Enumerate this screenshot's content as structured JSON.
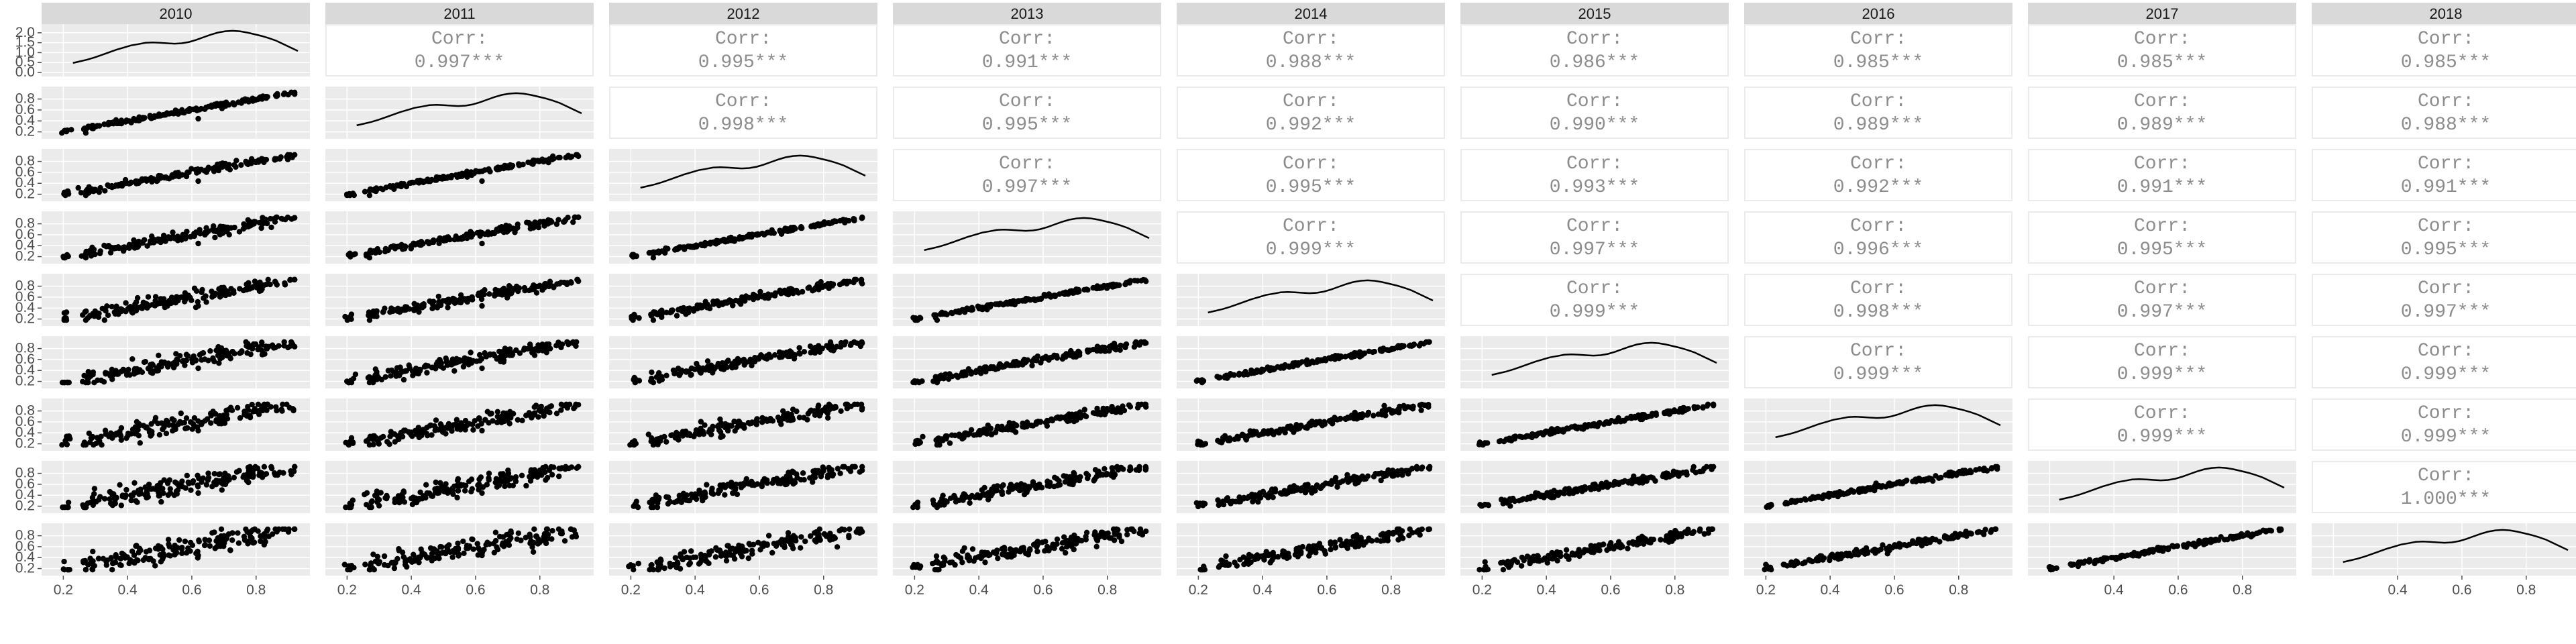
{
  "chart_data": {
    "type": "scatterplot-matrix",
    "variables": [
      "2010",
      "2011",
      "2012",
      "2013",
      "2014",
      "2015",
      "2016",
      "2017",
      "2018"
    ],
    "corr_label": "Corr:",
    "correlations": [
      [
        "2011",
        "2010",
        "0.997***"
      ],
      [
        "2012",
        "2010",
        "0.995***"
      ],
      [
        "2013",
        "2010",
        "0.991***"
      ],
      [
        "2014",
        "2010",
        "0.988***"
      ],
      [
        "2015",
        "2010",
        "0.986***"
      ],
      [
        "2016",
        "2010",
        "0.985***"
      ],
      [
        "2017",
        "2010",
        "0.985***"
      ],
      [
        "2018",
        "2010",
        "0.985***"
      ],
      [
        "2012",
        "2011",
        "0.998***"
      ],
      [
        "2013",
        "2011",
        "0.995***"
      ],
      [
        "2014",
        "2011",
        "0.992***"
      ],
      [
        "2015",
        "2011",
        "0.990***"
      ],
      [
        "2016",
        "2011",
        "0.989***"
      ],
      [
        "2017",
        "2011",
        "0.989***"
      ],
      [
        "2018",
        "2011",
        "0.988***"
      ],
      [
        "2013",
        "2012",
        "0.997***"
      ],
      [
        "2014",
        "2012",
        "0.995***"
      ],
      [
        "2015",
        "2012",
        "0.993***"
      ],
      [
        "2016",
        "2012",
        "0.992***"
      ],
      [
        "2017",
        "2012",
        "0.991***"
      ],
      [
        "2018",
        "2012",
        "0.991***"
      ],
      [
        "2014",
        "2013",
        "0.999***"
      ],
      [
        "2015",
        "2013",
        "0.997***"
      ],
      [
        "2016",
        "2013",
        "0.996***"
      ],
      [
        "2017",
        "2013",
        "0.995***"
      ],
      [
        "2018",
        "2013",
        "0.995***"
      ],
      [
        "2015",
        "2014",
        "0.999***"
      ],
      [
        "2016",
        "2014",
        "0.998***"
      ],
      [
        "2017",
        "2014",
        "0.997***"
      ],
      [
        "2018",
        "2014",
        "0.997***"
      ],
      [
        "2016",
        "2015",
        "0.999***"
      ],
      [
        "2017",
        "2015",
        "0.999***"
      ],
      [
        "2018",
        "2015",
        "0.999***"
      ],
      [
        "2017",
        "2016",
        "0.999***"
      ],
      [
        "2018",
        "2016",
        "0.999***"
      ],
      [
        "2018",
        "2017",
        "1.000***"
      ]
    ],
    "value_range": [
      0.17,
      0.93
    ],
    "x_ticks": [
      0.2,
      0.4,
      0.6,
      0.8
    ],
    "diag_y_ticks": [
      0.0,
      0.5,
      1.0,
      1.5,
      2.0
    ],
    "y_ticks": [
      0.2,
      0.4,
      0.6,
      0.8
    ],
    "density_profile": [
      0.22,
      0.26,
      0.3,
      0.35,
      0.41,
      0.47,
      0.53,
      0.58,
      0.63,
      0.66,
      0.69,
      0.7,
      0.69,
      0.68,
      0.67,
      0.68,
      0.71,
      0.76,
      0.82,
      0.88,
      0.93,
      0.96,
      0.97,
      0.96,
      0.93,
      0.89,
      0.85,
      0.8,
      0.74,
      0.66,
      0.58,
      0.5
    ],
    "panel_background": "#ebebeb",
    "strip_background": "#d9d9d9",
    "point_color": "#000000"
  }
}
